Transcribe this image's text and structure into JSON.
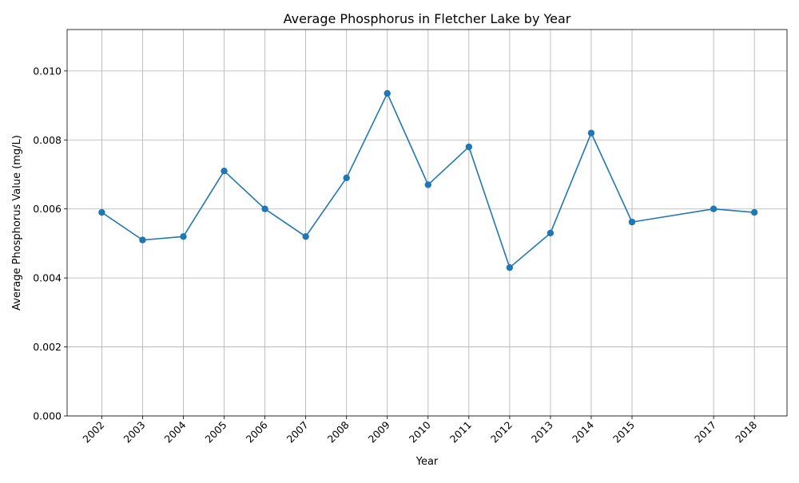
{
  "chart_data": {
    "type": "line",
    "title": "Average Phosphorus in Fletcher Lake by Year",
    "xlabel": "Year",
    "ylabel": "Average Phosphorus Value (mg/L)",
    "x": [
      2002,
      2003,
      2004,
      2005,
      2006,
      2007,
      2008,
      2009,
      2010,
      2011,
      2012,
      2013,
      2014,
      2015,
      2017,
      2018
    ],
    "x_ticks": [
      "2002",
      "2003",
      "2004",
      "2005",
      "2006",
      "2007",
      "2008",
      "2009",
      "2010",
      "2011",
      "2012",
      "2013",
      "2014",
      "2015",
      "2017",
      "2018"
    ],
    "series": [
      {
        "values": [
          0.0059,
          0.0051,
          0.0052,
          0.0071,
          0.006,
          0.0052,
          0.0069,
          0.00935,
          0.0067,
          0.0078,
          0.0043,
          0.0053,
          0.0082,
          0.00562,
          0.006,
          0.0059
        ],
        "color": "#1f77b4",
        "marker": "circle"
      }
    ],
    "y_ticks": [
      "0.000",
      "0.002",
      "0.004",
      "0.006",
      "0.008",
      "0.010"
    ],
    "xlim": [
      2001.15,
      2018.8
    ],
    "ylim": [
      0,
      0.0112
    ],
    "grid": true,
    "x_tick_rotation": 45
  }
}
